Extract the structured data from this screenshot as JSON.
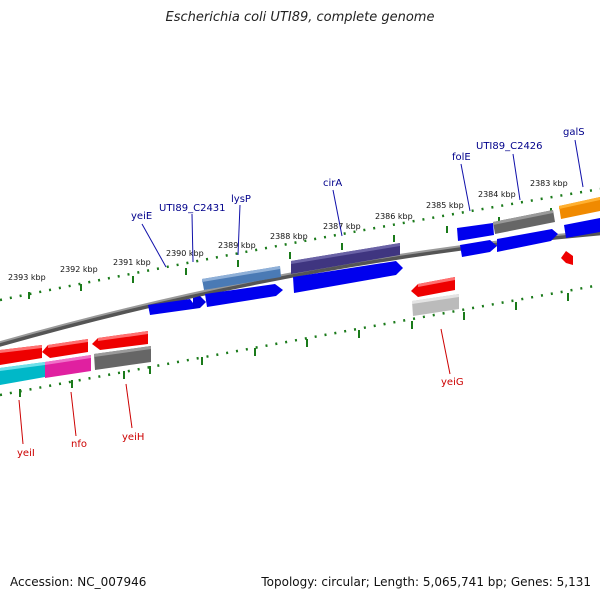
{
  "title": "Escherichia coli UTI89, complete genome",
  "footer": {
    "accession": "Accession: NC_007946",
    "topology": "Topology: circular; Length: 5,065,741 bp; Genes: 5,131"
  },
  "colors": {
    "forward_label": "#00008b",
    "reverse_label": "#cc0000",
    "backbone": "#888888",
    "tick": "#1a7a1a"
  },
  "ticks": [
    {
      "label": "2393 kbp"
    },
    {
      "label": "2392 kbp"
    },
    {
      "label": "2391 kbp"
    },
    {
      "label": "2390 kbp"
    },
    {
      "label": "2389 kbp"
    },
    {
      "label": "2388 kbp"
    },
    {
      "label": "2387 kbp"
    },
    {
      "label": "2386 kbp"
    },
    {
      "label": "2385 kbp"
    },
    {
      "label": "2384 kbp"
    },
    {
      "label": "2383 kbp"
    }
  ],
  "gene_labels": {
    "forward": [
      "yeiE",
      "UTI89_C2431",
      "lysP",
      "cirA",
      "folE",
      "UTI89_C2426",
      "galS"
    ],
    "reverse": [
      "yeiI",
      "nfo",
      "yeiH",
      "yeiG"
    ]
  }
}
